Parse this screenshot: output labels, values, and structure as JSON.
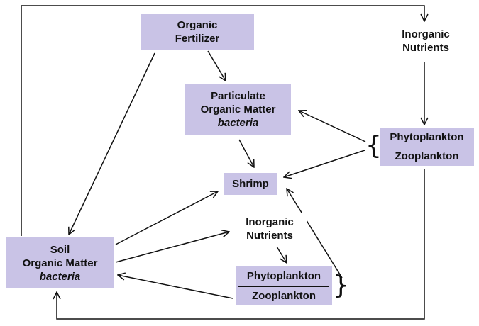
{
  "colors": {
    "box_fill": "#c9c3e6",
    "line": "#111111",
    "background": "#ffffff"
  },
  "nodes": {
    "organic_fertilizer": {
      "line1": "Organic",
      "line2": "Fertilizer"
    },
    "particulate_organic_matter": {
      "line1": "Particulate",
      "line2": "Organic Matter",
      "line3": "bacteria"
    },
    "shrimp": {
      "label": "Shrimp"
    },
    "inorganic_nutrients_top": {
      "line1": "Inorganic",
      "line2": "Nutrients"
    },
    "plankton_right": {
      "top": "Phytoplankton",
      "bottom": "Zooplankton",
      "brace": "{"
    },
    "soil_organic_matter": {
      "line1": "Soil",
      "line2": "Organic Matter",
      "line3": "bacteria"
    },
    "inorganic_nutrients_middle": {
      "line1": "Inorganic",
      "line2": "Nutrients"
    },
    "plankton_bottom": {
      "top": "Phytoplankton",
      "bottom": "Zooplankton",
      "brace": "}"
    }
  },
  "flows": [
    {
      "from": "Organic Fertilizer",
      "to": "Particulate Organic Matter"
    },
    {
      "from": "Organic Fertilizer",
      "to": "Soil Organic Matter"
    },
    {
      "from": "Particulate Organic Matter",
      "to": "Shrimp"
    },
    {
      "from": "Phytoplankton/Zooplankton (right)",
      "to": "Particulate Organic Matter"
    },
    {
      "from": "Phytoplankton/Zooplankton (right)",
      "to": "Shrimp"
    },
    {
      "from": "Inorganic Nutrients (top)",
      "to": "Phytoplankton/Zooplankton (right)"
    },
    {
      "from": "Soil Organic Matter",
      "to": "Inorganic Nutrients (top)"
    },
    {
      "from": "Soil Organic Matter",
      "to": "Shrimp"
    },
    {
      "from": "Soil Organic Matter",
      "to": "Inorganic Nutrients (middle)"
    },
    {
      "from": "Inorganic Nutrients (middle)",
      "to": "Phytoplankton/Zooplankton (bottom)"
    },
    {
      "from": "Phytoplankton/Zooplankton (bottom)",
      "to": "Soil Organic Matter"
    },
    {
      "from": "Phytoplankton/Zooplankton (bottom)",
      "to": "Shrimp"
    },
    {
      "from": "Phytoplankton/Zooplankton (right)",
      "to": "Soil Organic Matter"
    }
  ]
}
